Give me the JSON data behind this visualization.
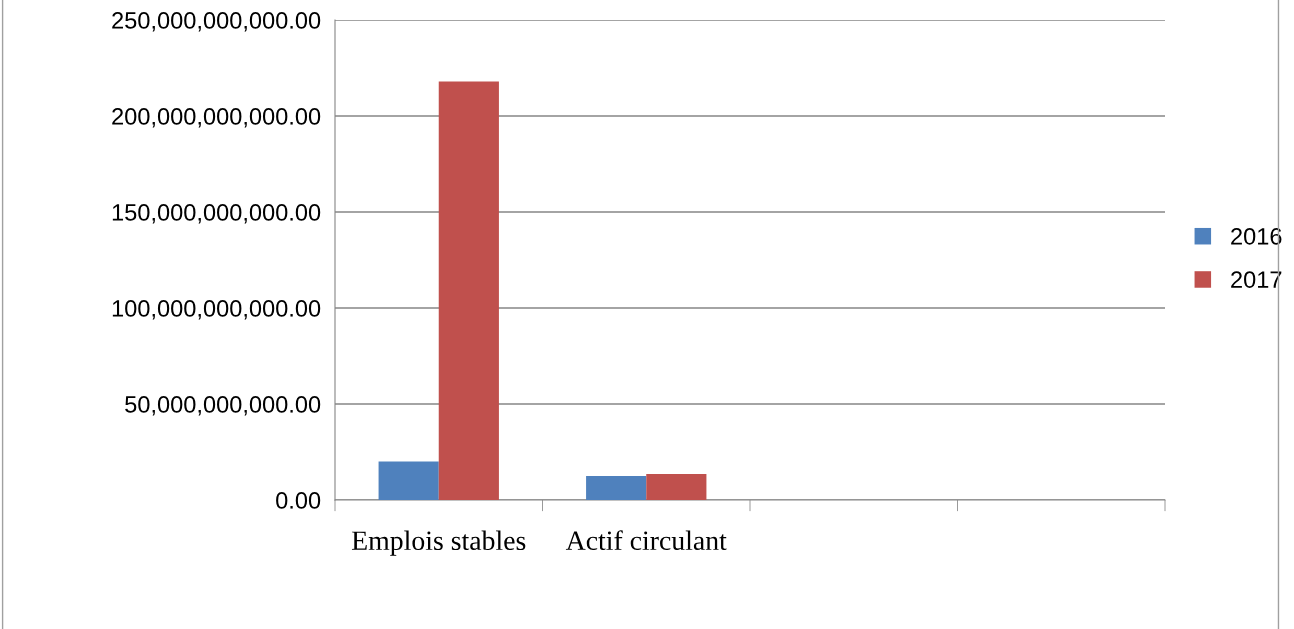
{
  "chart_data": {
    "type": "bar",
    "categories": [
      "Emplois stables",
      "Actif circulant",
      null,
      null
    ],
    "series": [
      {
        "name": "2016",
        "color": "#4f81bd",
        "values": [
          20000000000,
          12500000000,
          null,
          null
        ]
      },
      {
        "name": "2017",
        "color": "#c0504d",
        "values": [
          218000000000,
          13500000000,
          null,
          null
        ]
      }
    ],
    "ylim": [
      0,
      250000000000
    ],
    "yticks": [
      {
        "value": 0,
        "label": "0.00"
      },
      {
        "value": 50000000000,
        "label": "50,000,000,000.00"
      },
      {
        "value": 100000000000,
        "label": "100,000,000,000.00"
      },
      {
        "value": 150000000000,
        "label": "150,000,000,000.00"
      },
      {
        "value": 200000000000,
        "label": "200,000,000,000.00"
      },
      {
        "value": 250000000000,
        "label": "250,000,000,000.00"
      }
    ],
    "grid": "y",
    "legend": "right"
  }
}
